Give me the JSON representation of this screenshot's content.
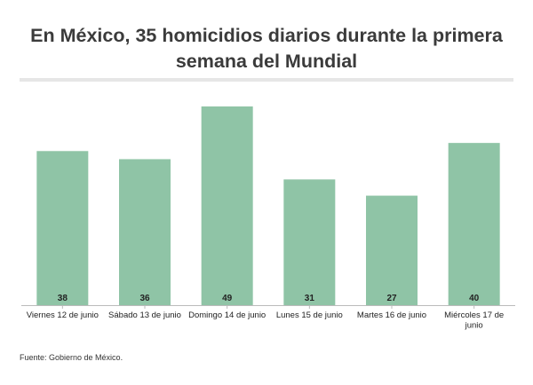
{
  "title": "En México, 35 homicidios diarios durante la primera semana del Mundial",
  "source": "Fuente: Gobierno de México.",
  "colors": {
    "bar": "#8fc4a6",
    "axis": "#bbbbbb",
    "label": "#222222"
  },
  "chart_data": {
    "type": "bar",
    "title": "En México, 35 homicidios diarios durante la primera semana del Mundial",
    "categories": [
      "Viernes 12 de junio",
      "Sábado 13 de junio",
      "Domingo 14 de junio",
      "Lunes 15 de junio",
      "Martes 16 de junio",
      "Miércoles 17 de junio"
    ],
    "values": [
      38,
      36,
      49,
      31,
      27,
      40
    ],
    "xlabel": "",
    "ylabel": "",
    "ylim": [
      0,
      49
    ],
    "grid": false,
    "data_labels": true
  }
}
